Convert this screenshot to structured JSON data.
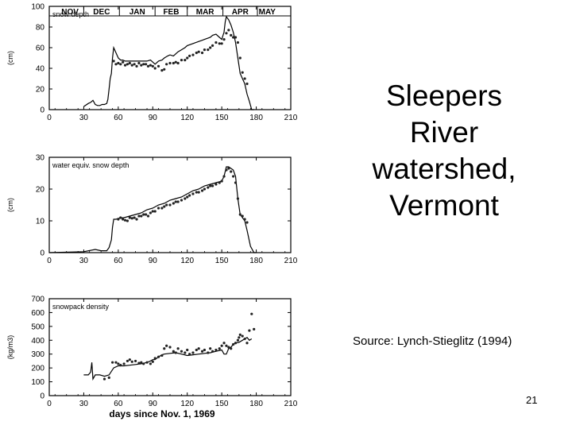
{
  "slide": {
    "title_lines": [
      "Sleepers",
      "River",
      "watershed,",
      "Vermont"
    ],
    "source": "Source: Lynch-Stieglitz (1994)",
    "page_number": "21"
  },
  "chart_data": [
    {
      "type": "line",
      "title": "snow depth",
      "ylabel": "(cm)",
      "xlabel": "",
      "xlim": [
        0,
        210
      ],
      "ylim": [
        0,
        100
      ],
      "xticks": [
        0,
        30,
        60,
        90,
        120,
        150,
        180,
        210
      ],
      "yticks": [
        0,
        20,
        40,
        60,
        80,
        100
      ],
      "month_labels": [
        "NOV",
        "DEC",
        "JAN",
        "FEB",
        "MAR",
        "APR",
        "MAY"
      ],
      "month_boundaries": [
        30,
        61,
        92,
        120,
        151,
        181
      ],
      "series": [
        {
          "style": "line",
          "x": [
            30,
            34,
            36,
            38,
            40,
            42,
            44,
            46,
            48,
            50,
            51,
            52,
            53,
            54,
            55,
            56,
            58,
            60,
            62,
            64,
            66,
            70,
            75,
            80,
            85,
            88,
            90,
            92,
            95,
            98,
            100,
            103,
            105,
            108,
            110,
            112,
            115,
            118,
            120,
            125,
            130,
            135,
            140,
            142,
            145,
            148,
            150,
            152,
            153,
            154,
            156,
            158,
            160,
            162,
            164,
            166,
            168,
            170,
            172,
            174,
            176,
            178
          ],
          "y": [
            3,
            6,
            7,
            9,
            5,
            4,
            4,
            5,
            5,
            6,
            10,
            20,
            30,
            35,
            50,
            60,
            55,
            50,
            48,
            48,
            47,
            47,
            47,
            47,
            47,
            48,
            46,
            44,
            47,
            48,
            50,
            52,
            53,
            52,
            54,
            56,
            58,
            60,
            62,
            64,
            66,
            68,
            70,
            72,
            73,
            70,
            68,
            75,
            85,
            90,
            87,
            82,
            75,
            65,
            50,
            35,
            30,
            25,
            15,
            8,
            0,
            0
          ]
        },
        {
          "style": "points",
          "x": [
            56,
            58,
            60,
            62,
            64,
            66,
            68,
            70,
            72,
            74,
            76,
            78,
            80,
            82,
            84,
            86,
            88,
            90,
            92,
            95,
            98,
            100,
            102,
            105,
            108,
            110,
            112,
            115,
            118,
            120,
            122,
            125,
            128,
            130,
            133,
            135,
            138,
            140,
            142,
            145,
            148,
            150,
            152,
            154,
            156,
            158,
            160,
            162,
            164,
            166,
            168,
            170,
            172
          ],
          "y": [
            47,
            44,
            45,
            44,
            46,
            43,
            44,
            45,
            43,
            44,
            42,
            45,
            43,
            44,
            44,
            42,
            43,
            42,
            40,
            42,
            38,
            39,
            44,
            45,
            45,
            46,
            45,
            48,
            48,
            50,
            52,
            53,
            55,
            56,
            55,
            58,
            58,
            60,
            62,
            65,
            64,
            64,
            68,
            74,
            77,
            72,
            70,
            70,
            65,
            50,
            36,
            30,
            25
          ]
        }
      ]
    },
    {
      "type": "line",
      "title": "water equiv. snow depth",
      "ylabel": "(cm)",
      "xlabel": "",
      "xlim": [
        0,
        210
      ],
      "ylim": [
        0,
        30
      ],
      "xticks": [
        0,
        30,
        60,
        90,
        120,
        150,
        180,
        210
      ],
      "yticks": [
        0,
        10,
        20,
        30
      ],
      "series": [
        {
          "style": "line",
          "x": [
            0,
            30,
            40,
            45,
            50,
            52,
            54,
            55,
            56,
            58,
            60,
            65,
            70,
            75,
            80,
            85,
            90,
            95,
            100,
            105,
            110,
            115,
            120,
            125,
            130,
            135,
            140,
            145,
            150,
            152,
            154,
            156,
            158,
            160,
            162,
            164,
            166,
            168,
            170,
            172,
            175,
            178,
            180
          ],
          "y": [
            0,
            0.3,
            1,
            0.6,
            0.6,
            1.6,
            4,
            8,
            10.5,
            10.5,
            10.8,
            11,
            11.5,
            12,
            12.5,
            13.5,
            14,
            15,
            15.5,
            16.5,
            17,
            17.5,
            18.5,
            19.5,
            20,
            21,
            21.5,
            22,
            22.5,
            24,
            27,
            27,
            26.5,
            26,
            24,
            17,
            12,
            11,
            10,
            7,
            2,
            0,
            0
          ]
        },
        {
          "style": "points",
          "x": [
            60,
            62,
            64,
            66,
            68,
            70,
            72,
            74,
            76,
            78,
            80,
            82,
            84,
            86,
            88,
            90,
            92,
            95,
            98,
            100,
            102,
            105,
            108,
            110,
            112,
            115,
            118,
            120,
            122,
            125,
            128,
            130,
            133,
            135,
            138,
            140,
            142,
            145,
            148,
            150,
            152,
            154,
            156,
            158,
            160,
            162,
            164,
            166,
            168,
            170,
            172
          ],
          "y": [
            10.5,
            11,
            10.5,
            10.2,
            10,
            11,
            10.8,
            11,
            10.5,
            11.5,
            11.5,
            12,
            12,
            11.5,
            12.5,
            13,
            13,
            14,
            14,
            14.5,
            15,
            15,
            15.5,
            16,
            16,
            16.5,
            17,
            17.5,
            18,
            18.5,
            19,
            19,
            19.5,
            20,
            20.5,
            21,
            21,
            21.5,
            22,
            22.5,
            24,
            26,
            26.5,
            25.5,
            24,
            22,
            17,
            12,
            11.5,
            10.5,
            9.5
          ]
        }
      ]
    },
    {
      "type": "line",
      "title": "snowpack density",
      "ylabel": "(kg/m3)",
      "xlabel": "days since Nov. 1, 1969",
      "xlim": [
        0,
        210
      ],
      "ylim": [
        0,
        700
      ],
      "xticks": [
        0,
        30,
        60,
        90,
        120,
        150,
        180,
        210
      ],
      "yticks": [
        0,
        100,
        200,
        300,
        400,
        500,
        600,
        700
      ],
      "series": [
        {
          "style": "line",
          "x": [
            30,
            34,
            36,
            37,
            38,
            40,
            44,
            48,
            52,
            56,
            60,
            65,
            70,
            75,
            80,
            85,
            88,
            90,
            92,
            95,
            98,
            100,
            105,
            110,
            115,
            120,
            125,
            130,
            135,
            140,
            145,
            150,
            152,
            154,
            155,
            156,
            158,
            160,
            162,
            165,
            168,
            170,
            172,
            174,
            176
          ],
          "y": [
            150,
            150,
            170,
            240,
            120,
            150,
            150,
            140,
            150,
            200,
            215,
            215,
            220,
            225,
            230,
            240,
            250,
            260,
            260,
            280,
            295,
            300,
            305,
            310,
            300,
            290,
            295,
            300,
            305,
            310,
            320,
            330,
            300,
            300,
            320,
            340,
            350,
            370,
            380,
            385,
            400,
            410,
            420,
            400,
            410
          ]
        },
        {
          "style": "points",
          "x": [
            48,
            52,
            55,
            58,
            60,
            62,
            65,
            68,
            70,
            72,
            75,
            78,
            80,
            82,
            85,
            88,
            90,
            92,
            95,
            98,
            100,
            102,
            105,
            108,
            110,
            112,
            115,
            118,
            120,
            122,
            125,
            128,
            130,
            133,
            135,
            138,
            140,
            142,
            145,
            148,
            150,
            152,
            154,
            156,
            158,
            160,
            162,
            164,
            165,
            166,
            168,
            170,
            172,
            174,
            176,
            178
          ],
          "y": [
            120,
            130,
            240,
            240,
            230,
            220,
            230,
            250,
            260,
            245,
            250,
            235,
            240,
            230,
            240,
            230,
            245,
            270,
            280,
            290,
            340,
            360,
            350,
            320,
            310,
            340,
            320,
            310,
            330,
            300,
            310,
            330,
            340,
            320,
            330,
            310,
            340,
            320,
            330,
            340,
            360,
            380,
            360,
            350,
            340,
            370,
            380,
            400,
            420,
            440,
            430,
            410,
            380,
            470,
            590,
            480
          ]
        }
      ]
    }
  ]
}
